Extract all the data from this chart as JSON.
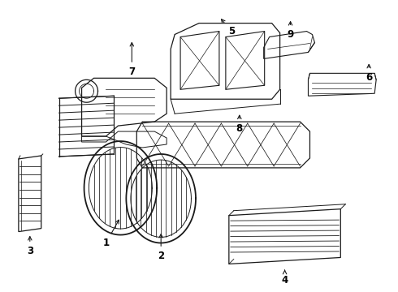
{
  "background_color": "#ffffff",
  "line_color": "#1a1a1a",
  "text_color": "#000000",
  "figsize": [
    4.9,
    3.6
  ],
  "dpi": 100
}
